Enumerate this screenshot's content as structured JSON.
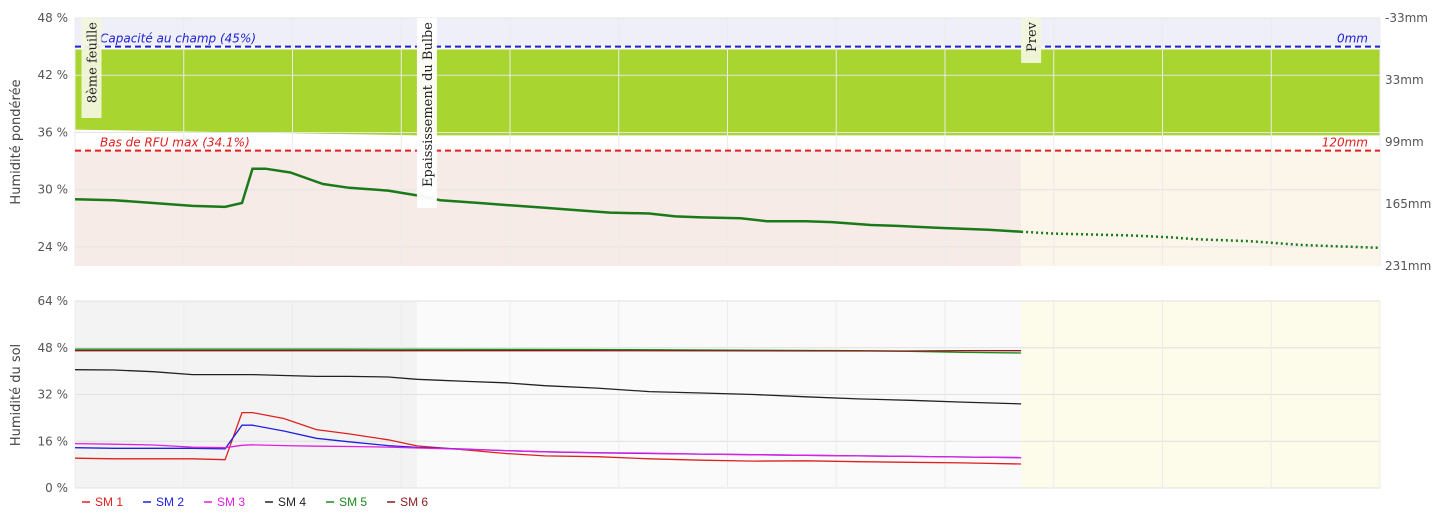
{
  "chart_data": [
    {
      "type": "area",
      "ylabel": "Humidité pondérée",
      "ylim": [
        22,
        48
      ],
      "y_ticks": [
        "48 %",
        "42 %",
        "36 %",
        "30 %",
        "24 %"
      ],
      "y_tick_values": [
        48,
        42,
        36,
        30,
        24
      ],
      "y2_ticks": [
        "-33mm",
        "33mm",
        "99mm",
        "165mm",
        "231mm"
      ],
      "y2_tick_values": [
        -33,
        33,
        99,
        165,
        231
      ],
      "y2_mm_range": [
        -33,
        231
      ],
      "x_range": [
        0,
        100
      ],
      "bands": [
        {
          "name": "field_capacity",
          "label": "Capacité au champ (45%)",
          "value": 45,
          "right_label": "0mm",
          "color": "#1f1fd0"
        },
        {
          "name": "rfu_bottom",
          "label": "Bas de RFU max (34.1%)",
          "value": 34.1,
          "right_label": "120mm",
          "color": "#e02020"
        }
      ],
      "optimal_zone": {
        "from": [
          36.3,
          35.7
        ],
        "to": 44.7,
        "color": "#a8d530"
      },
      "phases": [
        {
          "label": "8ème feuille",
          "at": 0.5
        },
        {
          "label": "Epaississement du Bulbe",
          "at": 26.2
        },
        {
          "label": "Prev",
          "at": 72.5
        }
      ],
      "forecast_start": 72.5,
      "series": [
        {
          "color": "#1a7a1a",
          "x": [
            0,
            3,
            6,
            9,
            11.5,
            12.8,
            13.6,
            14.6,
            16.5,
            19,
            21,
            24,
            26.2,
            28,
            31,
            33,
            36,
            38,
            41,
            44,
            46,
            48,
            51,
            53,
            56,
            58,
            61,
            63,
            66,
            68,
            70,
            72.5
          ],
          "y": [
            29.0,
            28.9,
            28.6,
            28.3,
            28.2,
            28.6,
            32.2,
            32.2,
            31.8,
            30.6,
            30.2,
            29.9,
            29.4,
            28.9,
            28.6,
            28.4,
            28.1,
            27.9,
            27.6,
            27.5,
            27.2,
            27.1,
            27.0,
            26.7,
            26.7,
            26.6,
            26.3,
            26.2,
            26.0,
            25.9,
            25.8,
            25.6
          ]
        },
        {
          "color": "#1a7a1a",
          "dashed": true,
          "x": [
            72.5,
            75,
            78,
            81,
            84,
            86,
            88,
            90,
            92,
            94,
            96,
            98,
            100
          ],
          "y": [
            25.6,
            25.4,
            25.3,
            25.2,
            25.0,
            24.8,
            24.7,
            24.6,
            24.4,
            24.2,
            24.1,
            24.0,
            23.9
          ]
        }
      ]
    },
    {
      "type": "line",
      "ylabel": "Humidité du sol",
      "ylim": [
        0,
        64
      ],
      "y_ticks": [
        "64 %",
        "48 %",
        "32 %",
        "16 %",
        "0 %"
      ],
      "y_tick_values": [
        64,
        48,
        32,
        16,
        0
      ],
      "x_range": [
        0,
        100
      ],
      "history_end": 26.2,
      "forecast_start": 72.5,
      "series": [
        {
          "name": "SM 1",
          "color": "#e02020",
          "x": [
            0,
            3,
            6,
            9,
            11.5,
            12.8,
            13.6,
            16,
            18.5,
            21,
            24,
            26.2,
            30,
            33,
            36,
            40,
            44,
            48,
            52,
            56,
            60,
            64,
            68,
            72.5
          ],
          "y": [
            10.2,
            10.0,
            10.0,
            10.0,
            9.7,
            25.8,
            25.8,
            23.8,
            20.0,
            18.5,
            16.5,
            14.4,
            13.0,
            11.8,
            11.0,
            10.7,
            10.0,
            9.5,
            9.2,
            9.3,
            9.0,
            8.8,
            8.6,
            8.2
          ]
        },
        {
          "name": "SM 2",
          "color": "#2020e0",
          "x": [
            0,
            3,
            6,
            9,
            11.5,
            12.8,
            13.6,
            16,
            18.5,
            21,
            24,
            26.2,
            30,
            33,
            36,
            40,
            44,
            48,
            52,
            56,
            60,
            64,
            68,
            72.5
          ],
          "y": [
            13.8,
            13.6,
            13.6,
            13.6,
            13.4,
            21.5,
            21.5,
            19.5,
            17.0,
            15.8,
            14.5,
            13.9,
            13.3,
            12.8,
            12.4,
            12.0,
            11.8,
            11.6,
            11.4,
            11.2,
            11.0,
            10.8,
            10.6,
            10.4
          ]
        },
        {
          "name": "SM 3",
          "color": "#e020e0",
          "x": [
            0,
            3,
            6,
            9,
            11.5,
            12.8,
            13.6,
            16,
            18.5,
            21,
            24,
            26.2,
            30,
            33,
            36,
            40,
            44,
            48,
            52,
            56,
            60,
            64,
            68,
            72.5
          ],
          "y": [
            15.2,
            15.0,
            14.7,
            14.0,
            13.8,
            14.6,
            14.8,
            14.5,
            14.3,
            14.2,
            14.0,
            13.7,
            13.2,
            12.8,
            12.4,
            12.1,
            11.9,
            11.6,
            11.4,
            11.2,
            11.0,
            10.8,
            10.6,
            10.4
          ]
        },
        {
          "name": "SM 4",
          "color": "#222222",
          "x": [
            0,
            3,
            6,
            9,
            11.5,
            12.8,
            13.6,
            16,
            18.5,
            21,
            24,
            26.2,
            30,
            33,
            36,
            40,
            44,
            48,
            52,
            56,
            60,
            64,
            68,
            72.5
          ],
          "y": [
            40.5,
            40.4,
            39.8,
            38.8,
            38.8,
            38.8,
            38.8,
            38.5,
            38.2,
            38.2,
            38.0,
            37.2,
            36.5,
            36.0,
            35.0,
            34.2,
            33.0,
            32.5,
            32.0,
            31.2,
            30.5,
            30.0,
            29.4,
            28.8
          ]
        },
        {
          "name": "SM 5",
          "color": "#1a8a1a",
          "x": [
            0,
            20,
            40,
            60,
            64,
            68,
            72.5
          ],
          "y": [
            47.5,
            47.5,
            47.4,
            47.0,
            46.8,
            46.4,
            46.2
          ]
        },
        {
          "name": "SM 6",
          "color": "#8a1a1a",
          "x": [
            0,
            20,
            40,
            60,
            64,
            68,
            72.5
          ],
          "y": [
            47.0,
            47.0,
            47.0,
            46.9,
            46.9,
            47.0,
            47.0
          ]
        }
      ]
    }
  ]
}
